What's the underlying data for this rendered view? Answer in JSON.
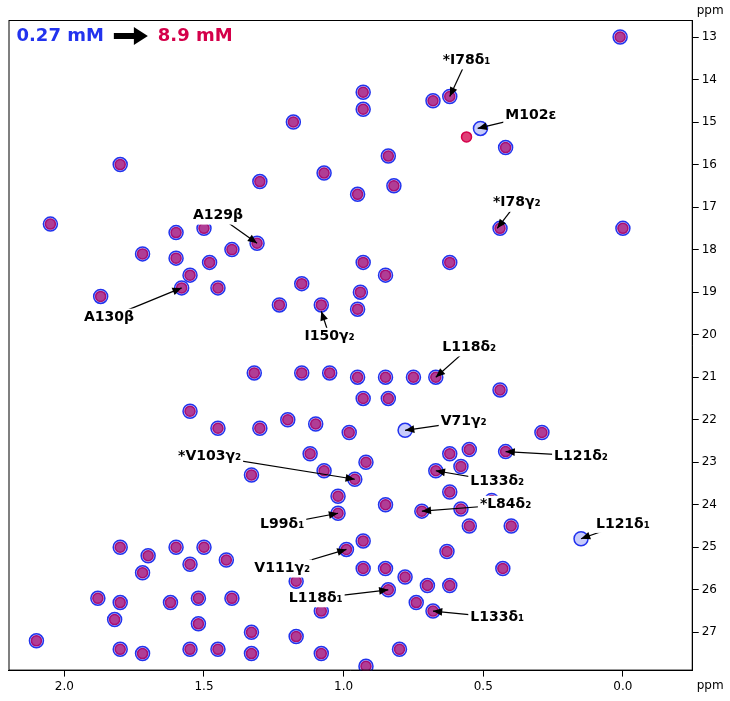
{
  "chart_data": {
    "type": "scatter",
    "xlabel": "ppm",
    "ylabel": "ppm",
    "xlim": [
      2.2,
      -0.25
    ],
    "ylim": [
      27.9,
      12.6
    ],
    "xticks": [
      {
        "value": 2.0,
        "label": "2.0"
      },
      {
        "value": 1.5,
        "label": "1.5"
      },
      {
        "value": 1.0,
        "label": "1.0"
      },
      {
        "value": 0.5,
        "label": "0.5"
      },
      {
        "value": 0.0,
        "label": "0.0"
      }
    ],
    "yticks": [
      13,
      14,
      15,
      16,
      17,
      18,
      19,
      20,
      21,
      22,
      23,
      24,
      25,
      26,
      27
    ],
    "grid": false,
    "legend": "upper left",
    "marker": "circle",
    "series": [
      {
        "name": "0.27 mM",
        "color": "#2233ee",
        "x": [
          0.01,
          0.93,
          0.93,
          0.68,
          0.62,
          1.18,
          0.42,
          0.84,
          1.8,
          1.3,
          1.07,
          0.95,
          0.82,
          0.44,
          0.0,
          2.05,
          1.72,
          1.6,
          1.5,
          1.6,
          1.48,
          1.4,
          1.31,
          1.55,
          1.45,
          1.58,
          1.87,
          1.23,
          1.15,
          1.08,
          0.93,
          0.85,
          0.94,
          0.95,
          0.62,
          1.32,
          1.15,
          1.05,
          0.95,
          0.85,
          0.75,
          0.67,
          0.44,
          1.55,
          1.45,
          1.3,
          1.2,
          1.1,
          0.98,
          0.93,
          0.84,
          0.29,
          1.33,
          1.12,
          1.07,
          0.96,
          0.92,
          0.42,
          0.55,
          0.62,
          0.58,
          0.67,
          0.62,
          0.47,
          0.72,
          0.58,
          0.55,
          0.4,
          1.02,
          0.85,
          1.02,
          1.8,
          1.7,
          1.6,
          1.5,
          1.42,
          1.55,
          1.72,
          0.93,
          0.63,
          0.43,
          0.62,
          0.99,
          1.17,
          1.08,
          0.93,
          0.85,
          0.78,
          0.84,
          0.7,
          0.74,
          0.68,
          0.8,
          0.92,
          1.88,
          1.8,
          1.62,
          1.52,
          1.4,
          1.82,
          1.52,
          1.33,
          1.17,
          1.8,
          1.72,
          1.55,
          1.45,
          1.33,
          1.08,
          2.1,
          0.51,
          0.78,
          0.15
        ],
        "values": [
          13.0,
          14.3,
          14.7,
          14.5,
          14.4,
          15.0,
          15.6,
          15.8,
          16.0,
          16.4,
          16.2,
          16.7,
          16.5,
          17.5,
          17.5,
          17.4,
          18.1,
          17.6,
          17.5,
          18.2,
          18.3,
          18.0,
          17.85,
          18.6,
          18.9,
          18.9,
          19.1,
          19.3,
          18.8,
          19.3,
          18.3,
          18.6,
          19.0,
          19.4,
          18.3,
          20.9,
          20.9,
          20.9,
          21.0,
          21.0,
          21.0,
          21.0,
          21.3,
          21.8,
          22.2,
          22.2,
          22.0,
          22.1,
          22.3,
          21.5,
          21.5,
          22.3,
          23.3,
          22.8,
          23.2,
          23.4,
          23.0,
          22.75,
          22.7,
          22.8,
          23.1,
          23.2,
          23.7,
          23.9,
          24.15,
          24.1,
          24.5,
          24.5,
          24.2,
          24.0,
          23.8,
          25.0,
          25.2,
          25.0,
          25.0,
          25.3,
          25.4,
          25.6,
          24.85,
          25.1,
          25.5,
          25.9,
          25.05,
          25.8,
          26.5,
          25.5,
          25.5,
          25.7,
          26.0,
          25.9,
          26.3,
          26.5,
          27.4,
          27.8,
          26.2,
          26.3,
          26.3,
          26.2,
          26.2,
          26.7,
          26.8,
          27.0,
          27.1,
          27.4,
          27.5,
          27.4,
          27.4,
          27.5,
          27.5,
          27.2,
          15.15,
          22.25,
          24.8
        ]
      },
      {
        "name": "8.9 mM",
        "color": "#d4004a",
        "x": [
          0.01,
          0.93,
          0.93,
          0.68,
          0.62,
          1.18,
          0.42,
          0.84,
          1.8,
          1.3,
          1.07,
          0.95,
          0.82,
          0.44,
          0.0,
          2.05,
          1.72,
          1.6,
          1.5,
          1.6,
          1.48,
          1.4,
          1.31,
          1.55,
          1.45,
          1.58,
          1.87,
          1.23,
          1.15,
          1.08,
          0.93,
          0.85,
          0.94,
          0.95,
          0.62,
          1.32,
          1.15,
          1.05,
          0.95,
          0.85,
          0.75,
          0.67,
          0.44,
          1.55,
          1.45,
          1.3,
          1.2,
          1.1,
          0.98,
          0.93,
          0.84,
          0.29,
          1.33,
          1.12,
          1.07,
          0.96,
          0.92,
          0.42,
          0.55,
          0.62,
          0.58,
          0.67,
          0.62,
          0.47,
          0.72,
          0.58,
          0.55,
          0.4,
          1.02,
          0.85,
          1.02,
          1.8,
          1.7,
          1.6,
          1.5,
          1.42,
          1.55,
          1.72,
          0.93,
          0.63,
          0.43,
          0.62,
          0.99,
          1.17,
          1.08,
          0.93,
          0.85,
          0.78,
          0.84,
          0.7,
          0.74,
          0.68,
          0.8,
          0.92,
          1.88,
          1.8,
          1.62,
          1.52,
          1.4,
          1.82,
          1.52,
          1.33,
          1.17,
          1.8,
          1.72,
          1.55,
          1.45,
          1.33,
          1.08,
          2.1,
          0.56
        ],
        "values": [
          13.0,
          14.3,
          14.7,
          14.5,
          14.4,
          15.0,
          15.6,
          15.8,
          16.0,
          16.4,
          16.2,
          16.7,
          16.5,
          17.5,
          17.5,
          17.4,
          18.1,
          17.6,
          17.5,
          18.2,
          18.3,
          18.0,
          17.85,
          18.6,
          18.9,
          18.9,
          19.1,
          19.3,
          18.8,
          19.3,
          18.3,
          18.6,
          19.0,
          19.4,
          18.3,
          20.9,
          20.9,
          20.9,
          21.0,
          21.0,
          21.0,
          21.0,
          21.3,
          21.8,
          22.2,
          22.2,
          22.0,
          22.1,
          22.3,
          21.5,
          21.5,
          22.3,
          23.3,
          22.8,
          23.2,
          23.4,
          23.0,
          22.75,
          22.7,
          22.8,
          23.1,
          23.2,
          23.7,
          23.9,
          24.15,
          24.1,
          24.5,
          24.5,
          24.2,
          24.0,
          23.8,
          25.0,
          25.2,
          25.0,
          25.0,
          25.3,
          25.4,
          25.6,
          24.85,
          25.1,
          25.5,
          25.9,
          25.05,
          25.8,
          26.5,
          25.5,
          25.5,
          25.7,
          26.0,
          25.9,
          26.3,
          26.5,
          27.4,
          27.8,
          26.2,
          26.3,
          26.3,
          26.2,
          26.2,
          26.7,
          26.8,
          27.0,
          27.1,
          27.4,
          27.5,
          27.4,
          27.4,
          27.5,
          27.5,
          27.2,
          15.35
        ]
      }
    ],
    "annotations": [
      {
        "text": "*I78δ₁",
        "x": 0.62,
        "y": 14.4,
        "text_x": 0.56,
        "text_y": 13.55
      },
      {
        "text": "M102ε",
        "x": 0.52,
        "y": 15.15,
        "text_x": 0.33,
        "text_y": 14.85
      },
      {
        "text": "*I78γ₂",
        "x": 0.45,
        "y": 17.5,
        "text_x": 0.38,
        "text_y": 16.9
      },
      {
        "text": "A129β",
        "x": 1.31,
        "y": 17.85,
        "text_x": 1.45,
        "text_y": 17.2
      },
      {
        "text": "A130β",
        "x": 1.58,
        "y": 18.9,
        "text_x": 1.84,
        "text_y": 19.6
      },
      {
        "text": "I150γ₂",
        "x": 1.08,
        "y": 19.45,
        "text_x": 1.05,
        "text_y": 20.05
      },
      {
        "text": "L118δ₂",
        "x": 0.67,
        "y": 21.0,
        "text_x": 0.55,
        "text_y": 20.3
      },
      {
        "text": "V71γ₂",
        "x": 0.78,
        "y": 22.25,
        "text_x": 0.57,
        "text_y": 22.05
      },
      {
        "text": "L121δ₂",
        "x": 0.42,
        "y": 22.75,
        "text_x": 0.15,
        "text_y": 22.85
      },
      {
        "text": "*V103γ₂",
        "x": 0.96,
        "y": 23.4,
        "text_x": 1.48,
        "text_y": 22.85
      },
      {
        "text": "L133δ₂",
        "x": 0.67,
        "y": 23.2,
        "text_x": 0.45,
        "text_y": 23.45
      },
      {
        "text": "*L84δ₂",
        "x": 0.72,
        "y": 24.15,
        "text_x": 0.42,
        "text_y": 24.0
      },
      {
        "text": "L99δ₁",
        "x": 1.02,
        "y": 24.2,
        "text_x": 1.22,
        "text_y": 24.45
      },
      {
        "text": "L121δ₁",
        "x": 0.15,
        "y": 24.8,
        "text_x": 0.0,
        "text_y": 24.45
      },
      {
        "text": "V111γ₂",
        "x": 0.99,
        "y": 25.05,
        "text_x": 1.22,
        "text_y": 25.5
      },
      {
        "text": "L118δ₁",
        "x": 0.84,
        "y": 26.0,
        "text_x": 1.1,
        "text_y": 26.2
      },
      {
        "text": "L133δ₁",
        "x": 0.68,
        "y": 26.5,
        "text_x": 0.45,
        "text_y": 26.65
      }
    ]
  }
}
